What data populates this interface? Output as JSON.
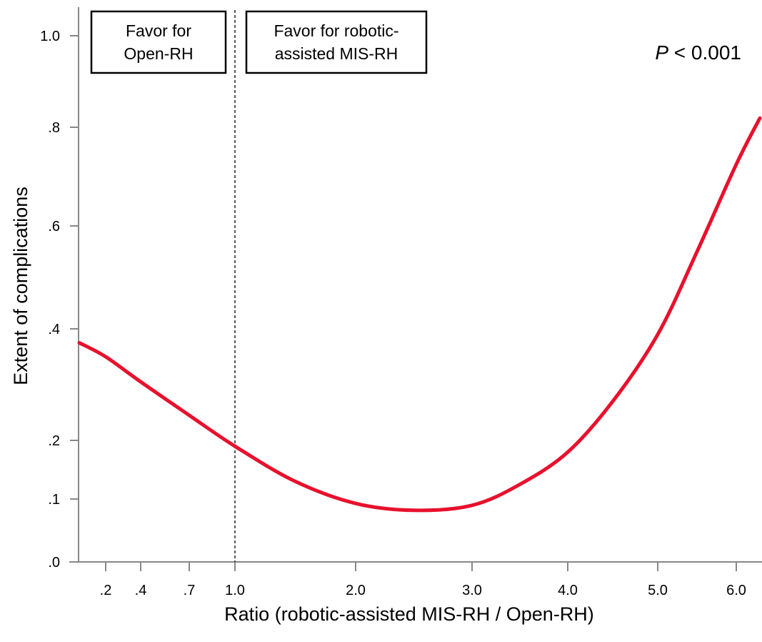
{
  "chart_data": {
    "type": "line",
    "xlabel": "Ratio (robotic-assisted MIS-RH / Open-RH)",
    "ylabel": "Extent of complications",
    "x_ticks": [
      ".2",
      ".4",
      ".7",
      "1.0",
      "2.0",
      "3.0",
      "4.0",
      "5.0",
      "6.0"
    ],
    "y_ticks": [
      ".0",
      ".1",
      ".2",
      ".4",
      ".6",
      ".8",
      "1.0"
    ],
    "reference_line": {
      "x": 1.0,
      "style": "dashed"
    },
    "annotations": {
      "favor_open": [
        "Favor for",
        "Open-RH"
      ],
      "favor_robotic": [
        "Favor for robotic-",
        "assisted MIS-RH"
      ],
      "p_label": "P",
      "p_value": " < 0.001"
    },
    "series": [
      {
        "color": "#e8112d",
        "x": [
          0.02,
          0.2,
          0.4,
          0.7,
          1.0,
          1.5,
          2.0,
          2.5,
          3.0,
          3.5,
          4.0,
          4.5,
          5.0,
          5.5,
          6.0,
          6.3
        ],
        "y": [
          0.375,
          0.35,
          0.305,
          0.245,
          0.19,
          0.13,
          0.093,
          0.082,
          0.09,
          0.125,
          0.18,
          0.27,
          0.39,
          0.55,
          0.725,
          0.82
        ]
      }
    ]
  }
}
